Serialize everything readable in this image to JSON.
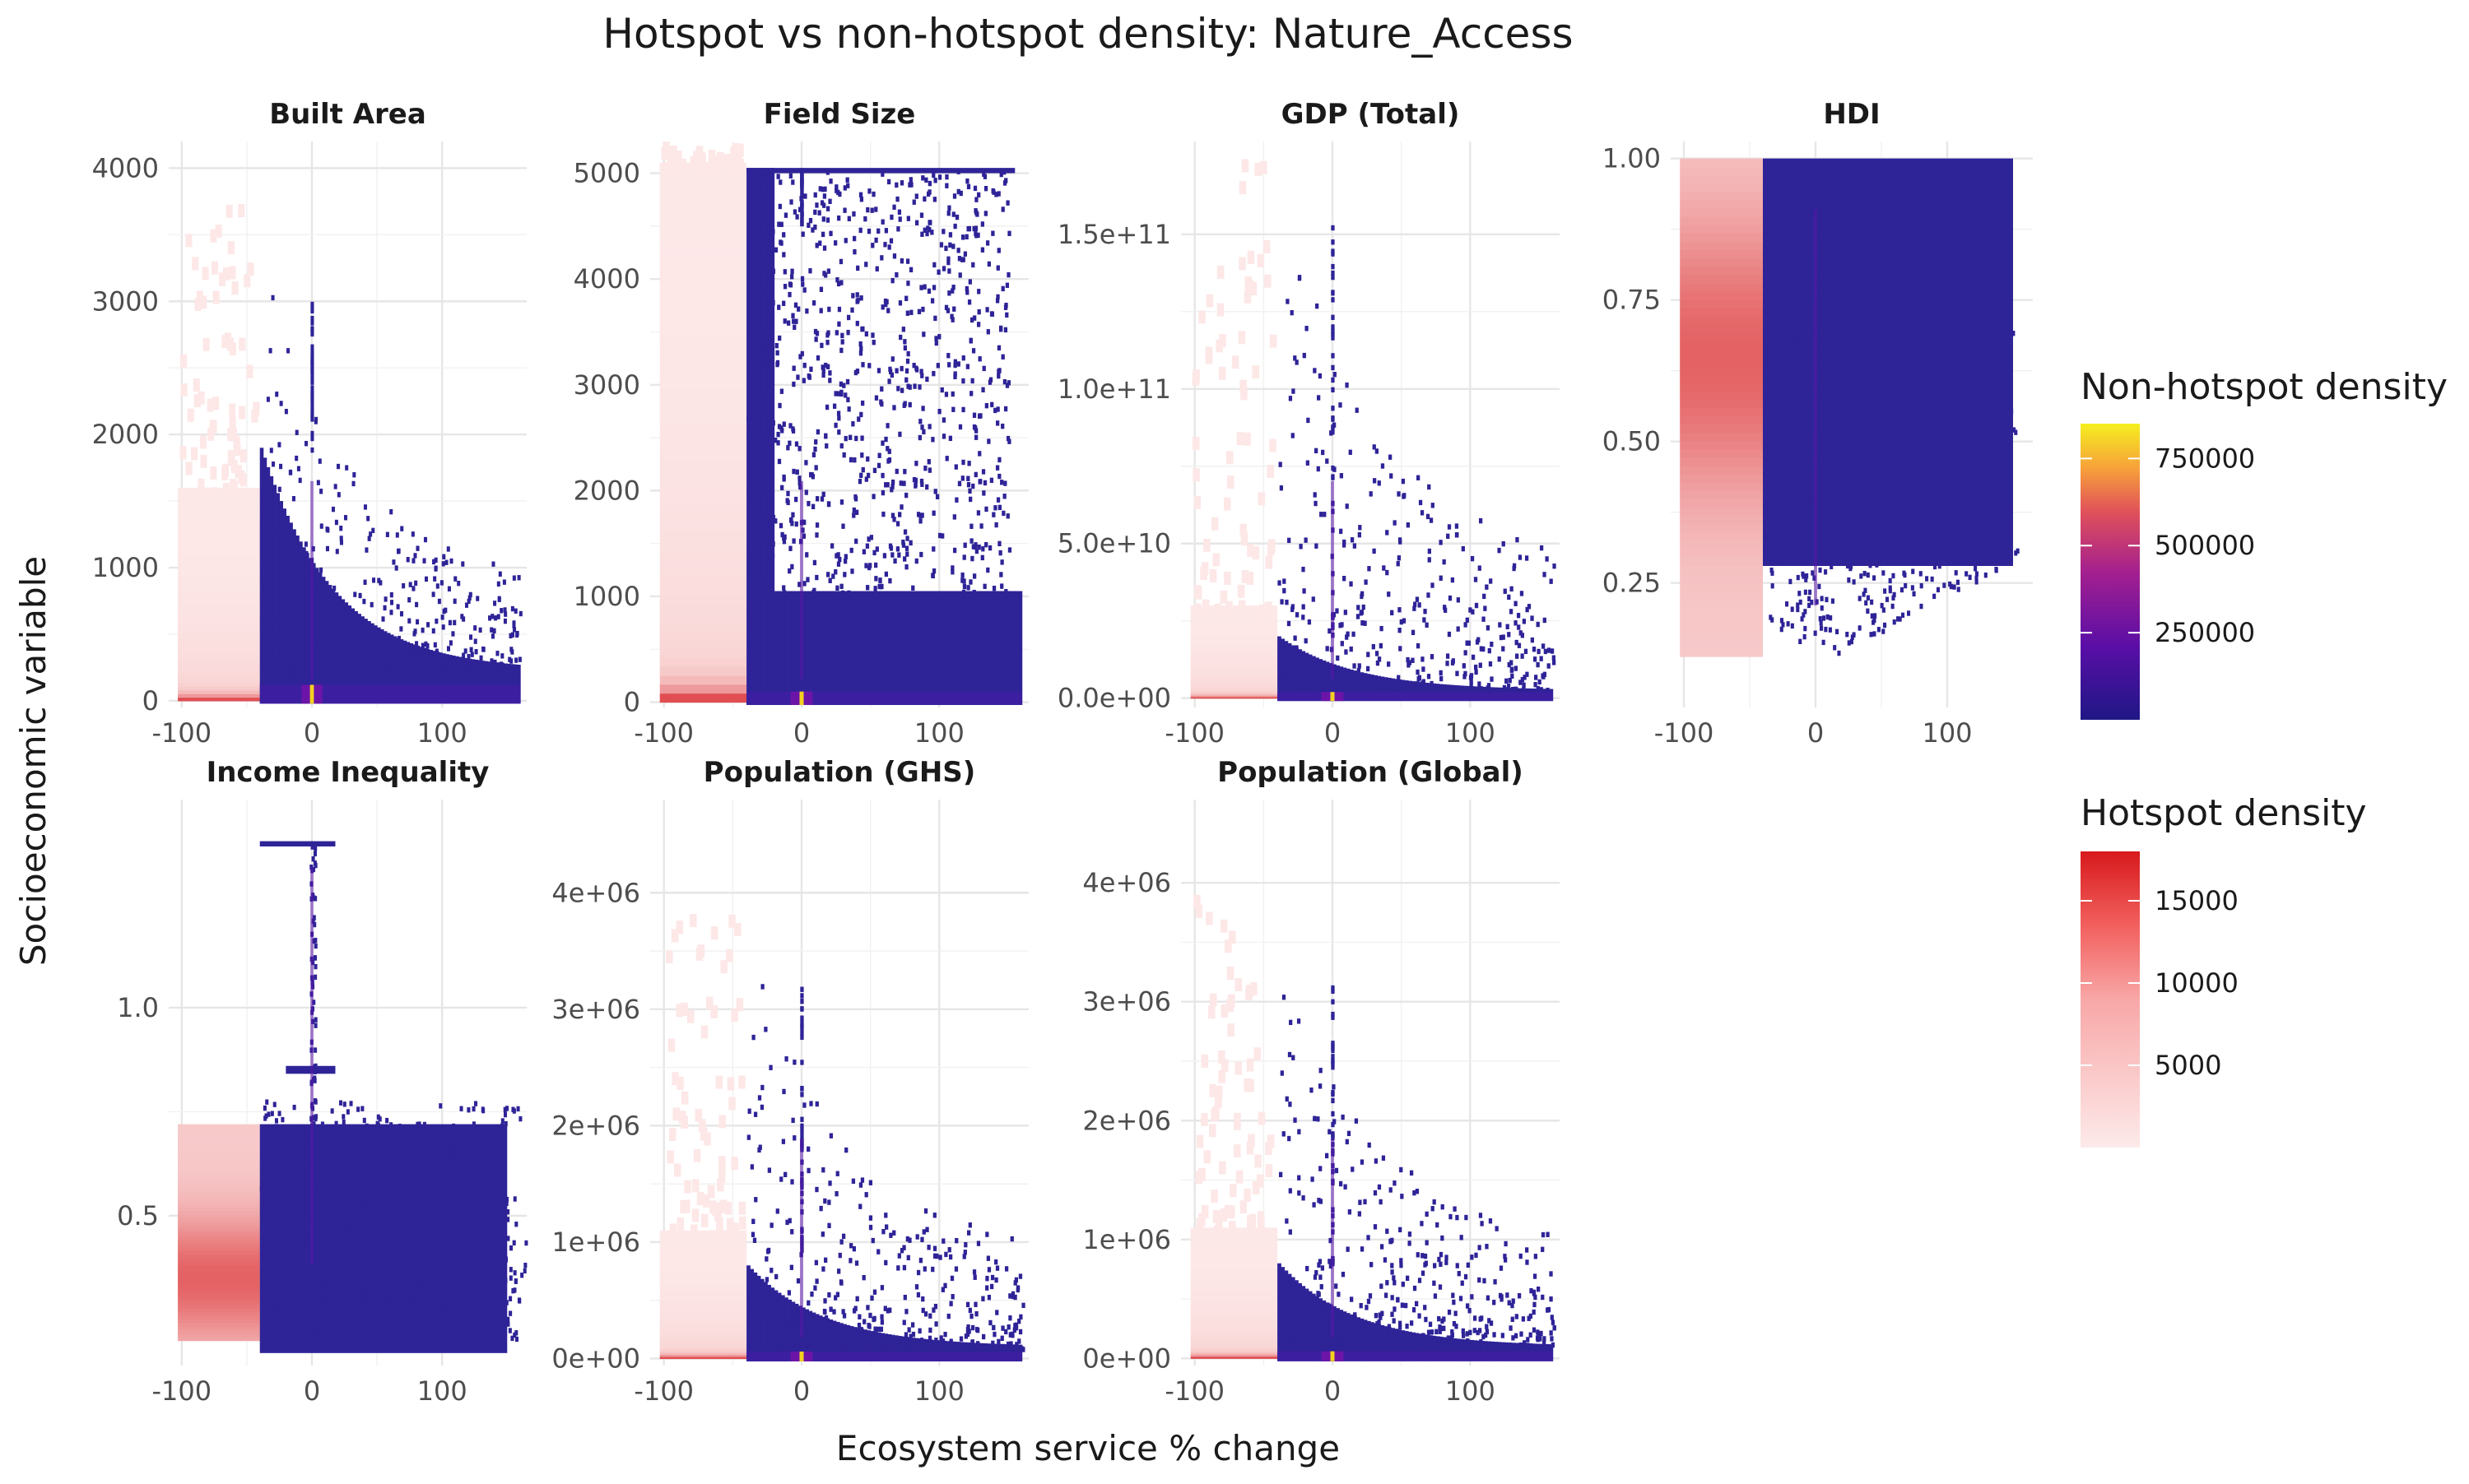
{
  "title": "Hotspot vs non-hotspot density: Nature_Access",
  "xlabel": "Ecosystem service % change",
  "ylabel": "Socioeconomic variable",
  "colors": {
    "nonhotspot_low": "#2c2296",
    "nonhotspot_mid": "#8b10b0",
    "nonhotspot_high": "#f5e81c",
    "hotspot_low": "#fde8e8",
    "hotspot_high": "#d7191c",
    "grid": "#ebebeb",
    "text": "#4d4d4d"
  },
  "legend": {
    "position": "right",
    "nonhotspot": {
      "title": "Non-hotspot density",
      "breaks": [
        250000,
        500000,
        750000
      ],
      "break_labels": [
        "250000",
        "500000",
        "750000"
      ],
      "range": [
        0,
        850000
      ]
    },
    "hotspot": {
      "title": "Hotspot density",
      "breaks": [
        5000,
        10000,
        15000
      ],
      "break_labels": [
        "5000",
        "10000",
        "15000"
      ],
      "range": [
        0,
        18000
      ]
    }
  },
  "chart_data": {
    "type": "heatmap",
    "facets": [
      {
        "title": "Built Area",
        "xlim": [
          -110,
          165
        ],
        "ylim": [
          -50,
          4200
        ],
        "xticks": [
          -100,
          0,
          100
        ],
        "xtick_labels": [
          "-100",
          "0",
          "100"
        ],
        "yticks": [
          0,
          1000,
          2000,
          3000,
          4000
        ],
        "ytick_labels": [
          "0",
          "1000",
          "2000",
          "3000",
          "4000"
        ],
        "hotspot_x": [
          -100,
          -40
        ],
        "hotspot_top": 1600,
        "hotspot_peak": 50,
        "nonhot_cap": 1900,
        "nonhot_tail": 450,
        "nonhot_max": 3400,
        "dense_band": 120
      },
      {
        "title": "Field Size",
        "xlim": [
          -110,
          165
        ],
        "ylim": [
          -50,
          5300
        ],
        "xticks": [
          -100,
          0,
          100
        ],
        "xtick_labels": [
          "-100",
          "0",
          "100"
        ],
        "yticks": [
          0,
          1000,
          2000,
          3000,
          4000,
          5000
        ],
        "ytick_labels": [
          "0",
          "1000",
          "2000",
          "3000",
          "4000",
          "5000"
        ],
        "hotspot_x": [
          -100,
          -40
        ],
        "hotspot_top": 5100,
        "hotspot_peak": 50,
        "nonhot_cap": 5050,
        "nonhot_tail": 1050,
        "nonhot_max": 5050,
        "dense_band": 100
      },
      {
        "title": "GDP (Total)",
        "xlim": [
          -110,
          165
        ],
        "ylim": [
          -3000000000,
          180000000000
        ],
        "xticks": [
          -100,
          0,
          100
        ],
        "xtick_labels": [
          "-100",
          "0",
          "100"
        ],
        "yticks": [
          0,
          50000000000,
          100000000000,
          150000000000
        ],
        "ytick_labels": [
          "0.0e+00",
          "5.0e+10",
          "1.0e+11",
          "1.5e+11"
        ],
        "hotspot_x": [
          -100,
          -40
        ],
        "hotspot_top": 30000000000,
        "hotspot_peak": 1000000000,
        "nonhot_cap": 20000000000,
        "nonhot_tail": 5000000000,
        "nonhot_max": 170000000000,
        "dense_band": 2000000000
      },
      {
        "title": "HDI",
        "xlim": [
          -110,
          165
        ],
        "ylim": [
          0.03,
          1.03
        ],
        "xticks": [
          -100,
          0,
          100
        ],
        "xtick_labels": [
          "-100",
          "0",
          "100"
        ],
        "yticks": [
          0.25,
          0.5,
          0.75,
          1.0
        ],
        "ytick_labels": [
          "0.25",
          "0.50",
          "0.75",
          "1.00"
        ],
        "hotspot_x": [
          -100,
          -40
        ],
        "hotspot_top": 1.0,
        "hotspot_peak": 0.65,
        "nonhot_cap": 1.0,
        "nonhot_tail": 0.25,
        "nonhot_max": 1.0,
        "dense_band": 0.0
      },
      {
        "title": "Income Inequality",
        "xlim": [
          -110,
          165
        ],
        "ylim": [
          0.14,
          1.5
        ],
        "xticks": [
          -100,
          0,
          100
        ],
        "xtick_labels": [
          "-100",
          "0",
          "100"
        ],
        "yticks": [
          0.5,
          1.0
        ],
        "ytick_labels": [
          "0.5",
          "1.0"
        ],
        "hotspot_x": [
          -100,
          -40
        ],
        "hotspot_top": 0.72,
        "hotspot_peak": 0.35,
        "nonhot_cap": 0.72,
        "nonhot_tail": 0.57,
        "nonhot_max": 1.4,
        "dense_band": 0.0
      },
      {
        "title": "Population (GHS)",
        "xlim": [
          -110,
          165
        ],
        "ylim": [
          -60000,
          4800000
        ],
        "xticks": [
          -100,
          0,
          100
        ],
        "xtick_labels": [
          "-100",
          "0",
          "100"
        ],
        "yticks": [
          0,
          1000000,
          2000000,
          3000000,
          4000000
        ],
        "ytick_labels": [
          "0e+00",
          "1e+06",
          "2e+06",
          "3e+06",
          "4e+06"
        ],
        "hotspot_x": [
          -100,
          -40
        ],
        "hotspot_top": 1100000,
        "hotspot_peak": 30000,
        "nonhot_cap": 800000,
        "nonhot_tail": 200000,
        "nonhot_max": 3600000,
        "dense_band": 60000
      },
      {
        "title": "Population (Global)",
        "xlim": [
          -110,
          165
        ],
        "ylim": [
          -60000,
          4700000
        ],
        "xticks": [
          -100,
          0,
          100
        ],
        "xtick_labels": [
          "-100",
          "0",
          "100"
        ],
        "yticks": [
          0,
          1000000,
          2000000,
          3000000,
          4000000
        ],
        "ytick_labels": [
          "0e+00",
          "1e+06",
          "2e+06",
          "3e+06",
          "4e+06"
        ],
        "hotspot_x": [
          -100,
          -40
        ],
        "hotspot_top": 1100000,
        "hotspot_peak": 30000,
        "nonhot_cap": 800000,
        "nonhot_tail": 200000,
        "nonhot_max": 3600000,
        "dense_band": 60000
      }
    ]
  }
}
